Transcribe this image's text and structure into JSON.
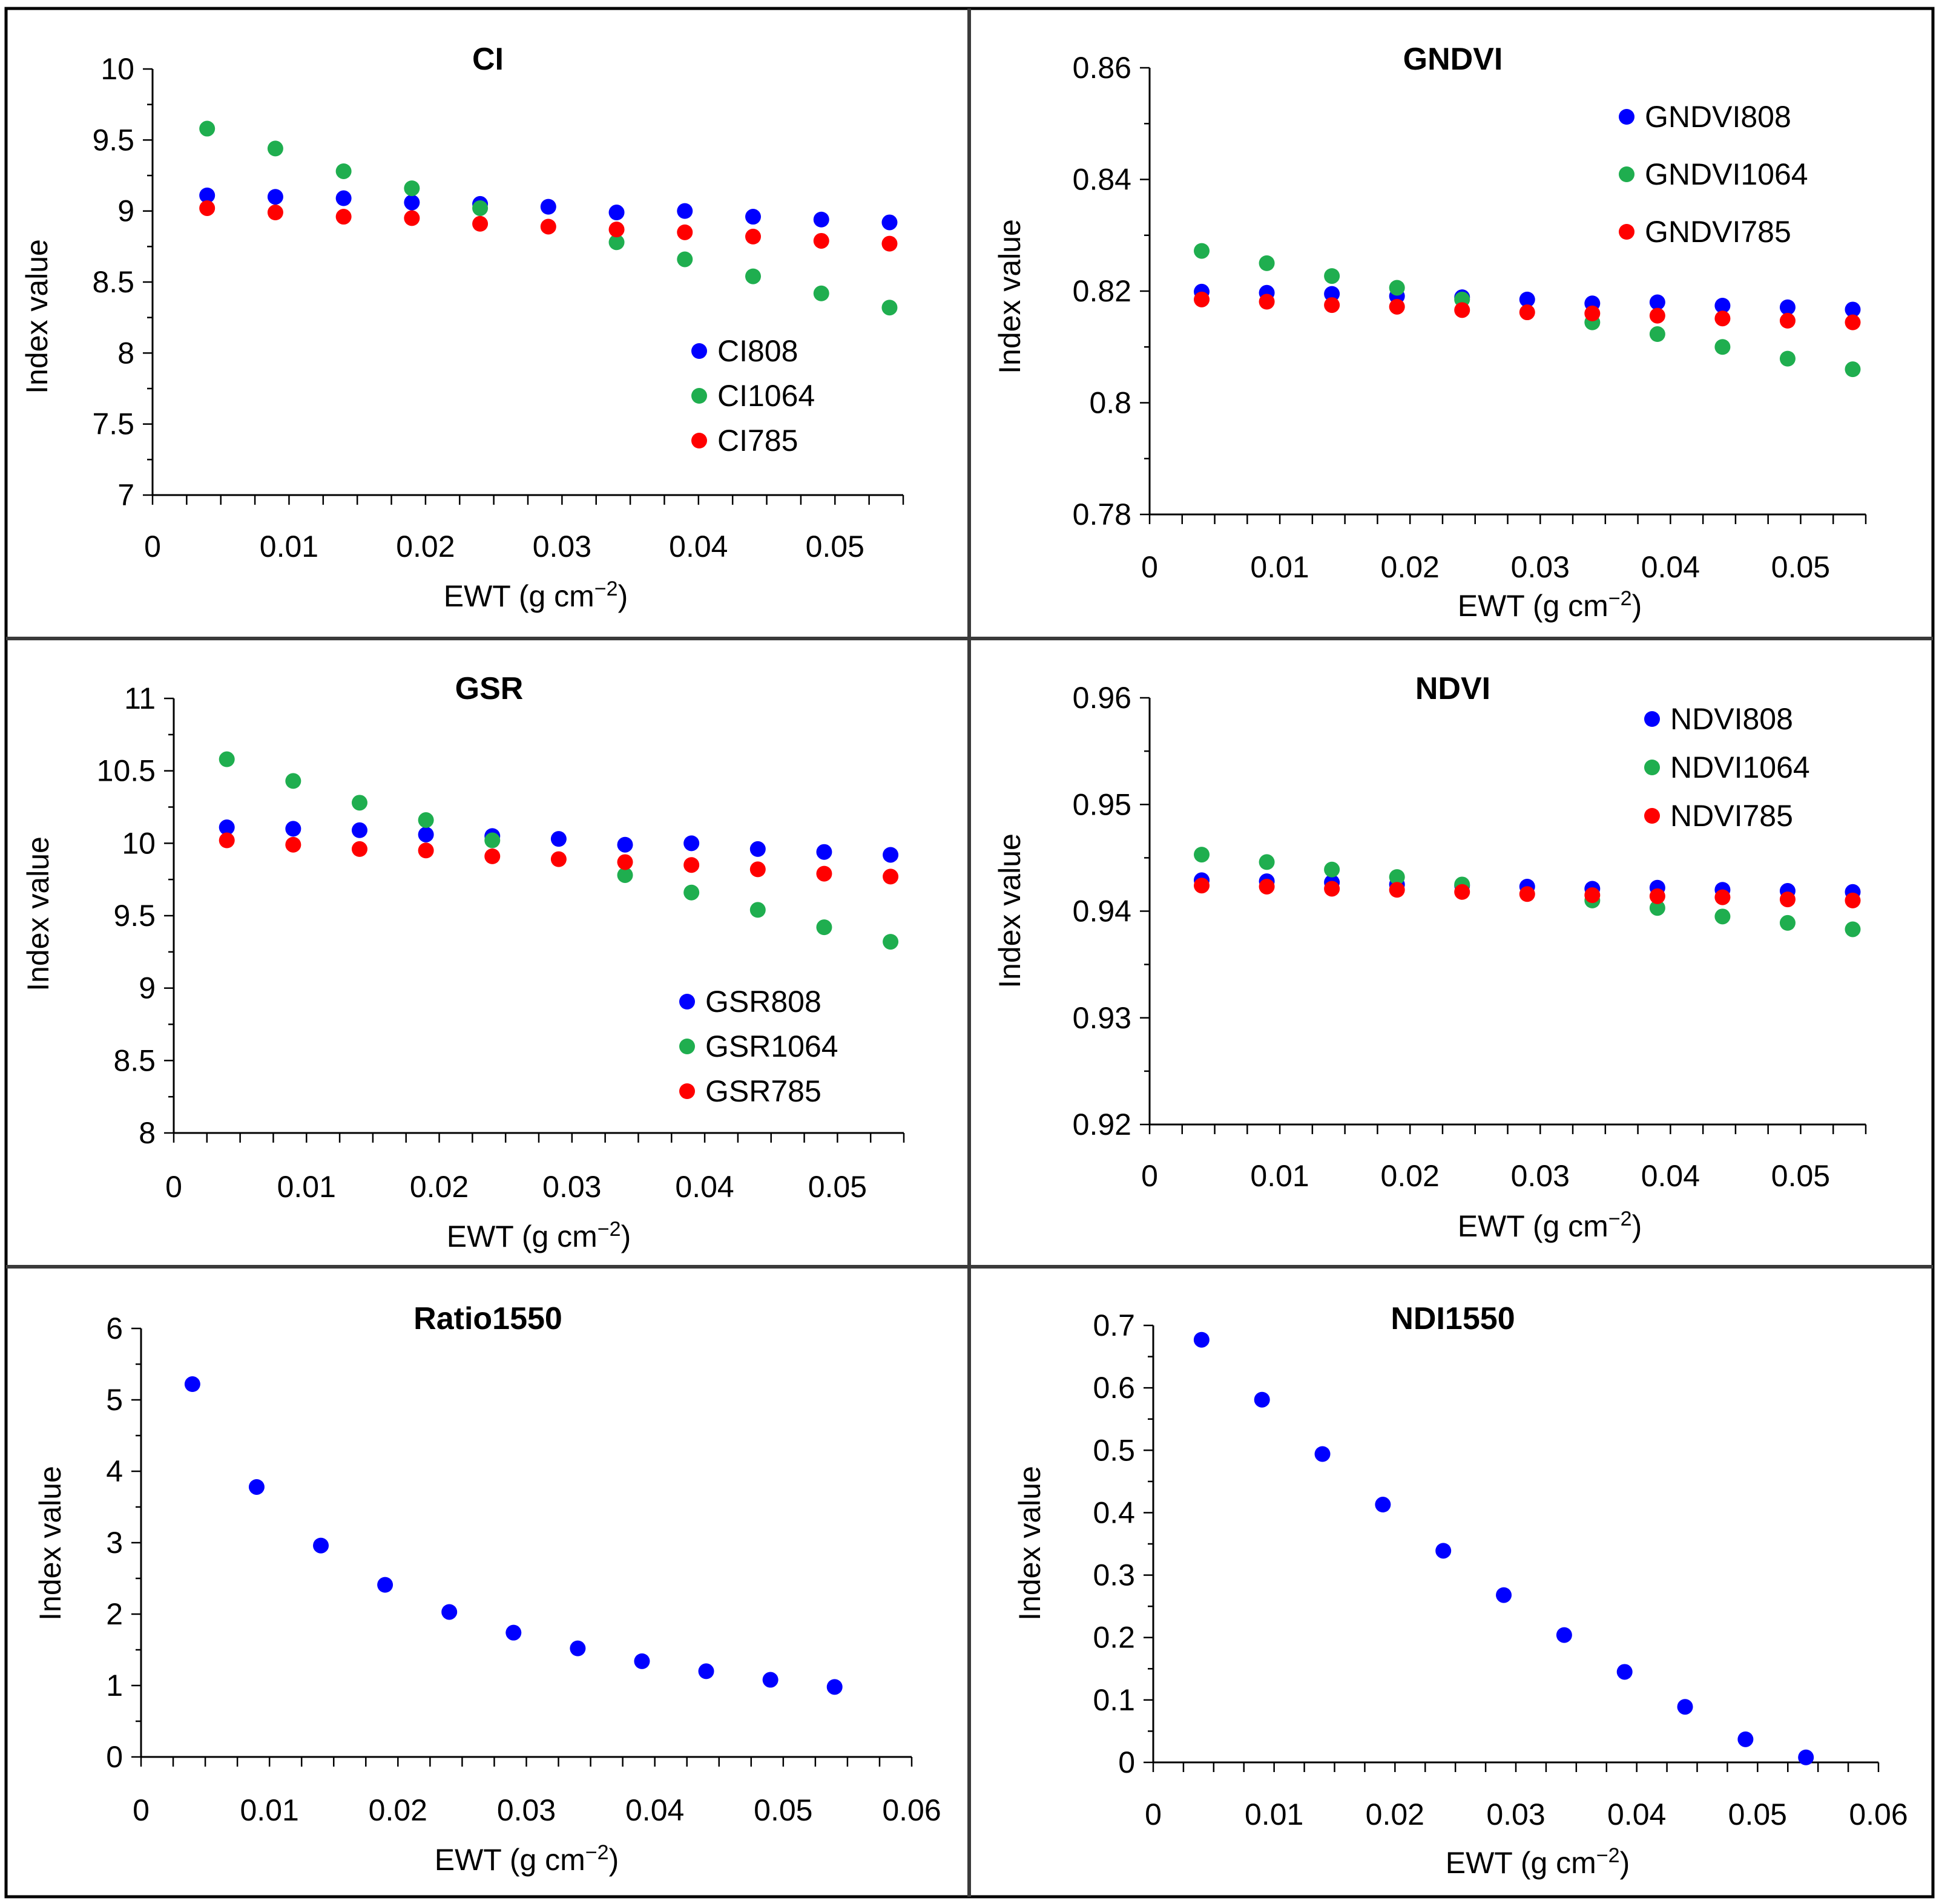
{
  "colors": {
    "s808": "#0000ff",
    "s1064": "#1fae4f",
    "s785": "#ff0000"
  },
  "chart_data": [
    {
      "type": "scatter",
      "title": "CI",
      "xlabel": "EWT (g cm",
      "xlabel_sup": "−2",
      "xlabel_end": ")",
      "ylabel": "Index value",
      "xlim": [
        0,
        0.055
      ],
      "ylim": [
        7,
        10
      ],
      "x_ticks": [
        "0",
        "0.01",
        "0.02",
        "0.03",
        "0.04",
        "0.05"
      ],
      "y_ticks": [
        "7",
        "7.5",
        "8",
        "8.5",
        "9",
        "9.5",
        "10"
      ],
      "legend_position": "bottom-right",
      "x": [
        0.004,
        0.009,
        0.014,
        0.019,
        0.024,
        0.029,
        0.034,
        0.039,
        0.044,
        0.049,
        0.054
      ],
      "series": [
        {
          "name": "CI808",
          "color": "#0000ff",
          "values": [
            9.11,
            9.1,
            9.09,
            9.06,
            9.05,
            9.03,
            8.99,
            9.0,
            8.96,
            8.94,
            8.92
          ]
        },
        {
          "name": "CI1064",
          "color": "#1fae4f",
          "values": [
            9.58,
            9.44,
            9.28,
            9.16,
            9.02,
            null,
            8.78,
            8.66,
            8.54,
            8.42,
            8.32
          ]
        },
        {
          "name": "CI785",
          "color": "#ff0000",
          "values": [
            9.02,
            8.99,
            8.96,
            8.95,
            8.91,
            8.89,
            8.87,
            8.85,
            8.82,
            8.79,
            8.77
          ]
        }
      ]
    },
    {
      "type": "scatter",
      "title": "GNDVI",
      "xlabel": "EWT (g cm",
      "xlabel_sup": "−2",
      "xlabel_end": ")",
      "ylabel": "Index value",
      "xlim": [
        0,
        0.055
      ],
      "ylim": [
        0.78,
        0.86
      ],
      "x_ticks": [
        "0",
        "0.01",
        "0.02",
        "0.03",
        "0.04",
        "0.05"
      ],
      "y_ticks": [
        "0.78",
        "0.8",
        "0.82",
        "0.84",
        "0.86"
      ],
      "legend_position": "top-right",
      "x": [
        0.004,
        0.009,
        0.014,
        0.019,
        0.024,
        0.029,
        0.034,
        0.039,
        0.044,
        0.049,
        0.054
      ],
      "series": [
        {
          "name": "GNDVI808",
          "color": "#0000ff",
          "values": [
            0.8199,
            0.8197,
            0.8195,
            0.8191,
            0.8189,
            0.8185,
            0.8178,
            0.818,
            0.8174,
            0.8171,
            0.8167
          ]
        },
        {
          "name": "GNDVI1064",
          "color": "#1fae4f",
          "values": [
            0.8272,
            0.825,
            0.8227,
            0.8206,
            0.8185,
            null,
            0.8144,
            0.8123,
            0.81,
            0.8079,
            0.806
          ]
        },
        {
          "name": "GNDVI785",
          "color": "#ff0000",
          "values": [
            0.8185,
            0.8181,
            0.8175,
            0.8172,
            0.8166,
            0.8162,
            0.816,
            0.8156,
            0.8151,
            0.8147,
            0.8144
          ]
        }
      ]
    },
    {
      "type": "scatter",
      "title": "GSR",
      "xlabel": "EWT (g cm",
      "xlabel_sup": "−2",
      "xlabel_end": ")",
      "ylabel": "Index value",
      "xlim": [
        0,
        0.055
      ],
      "ylim": [
        8,
        11
      ],
      "x_ticks": [
        "0",
        "0.01",
        "0.02",
        "0.03",
        "0.04",
        "0.05"
      ],
      "y_ticks": [
        "8",
        "8.5",
        "9",
        "9.5",
        "10",
        "10.5",
        "11"
      ],
      "legend_position": "bottom-right",
      "x": [
        0.004,
        0.009,
        0.014,
        0.019,
        0.024,
        0.029,
        0.034,
        0.039,
        0.044,
        0.049,
        0.054
      ],
      "series": [
        {
          "name": "GSR808",
          "color": "#0000ff",
          "values": [
            10.11,
            10.1,
            10.09,
            10.06,
            10.05,
            10.03,
            9.99,
            10.0,
            9.96,
            9.94,
            9.92
          ]
        },
        {
          "name": "GSR1064",
          "color": "#1fae4f",
          "values": [
            10.58,
            10.43,
            10.28,
            10.16,
            10.02,
            null,
            9.78,
            9.66,
            9.54,
            9.42,
            9.32
          ]
        },
        {
          "name": "GSR785",
          "color": "#ff0000",
          "values": [
            10.02,
            9.99,
            9.96,
            9.95,
            9.91,
            9.89,
            9.87,
            9.85,
            9.82,
            9.79,
            9.77
          ]
        }
      ]
    },
    {
      "type": "scatter",
      "title": "NDVI",
      "xlabel": "EWT (g cm",
      "xlabel_sup": "−2",
      "xlabel_end": ")",
      "ylabel": "Index value",
      "xlim": [
        0,
        0.055
      ],
      "ylim": [
        0.92,
        0.96
      ],
      "x_ticks": [
        "0",
        "0.01",
        "0.02",
        "0.03",
        "0.04",
        "0.05"
      ],
      "y_ticks": [
        "0.92",
        "0.93",
        "0.94",
        "0.95",
        "0.96"
      ],
      "legend_position": "top-right",
      "x": [
        0.004,
        0.009,
        0.014,
        0.019,
        0.024,
        0.029,
        0.034,
        0.039,
        0.044,
        0.049,
        0.054
      ],
      "series": [
        {
          "name": "NDVI808",
          "color": "#0000ff",
          "values": [
            0.9429,
            0.9428,
            0.9427,
            0.9425,
            0.9424,
            0.9423,
            0.9421,
            0.9422,
            0.942,
            0.9419,
            0.9418
          ]
        },
        {
          "name": "NDVI1064",
          "color": "#1fae4f",
          "values": [
            0.9453,
            0.9446,
            0.9439,
            0.9432,
            0.9425,
            null,
            0.941,
            0.9403,
            0.9395,
            0.9389,
            0.9383
          ]
        },
        {
          "name": "NDVI785",
          "color": "#ff0000",
          "values": [
            0.9424,
            0.9423,
            0.9421,
            0.942,
            0.9418,
            0.9416,
            0.9415,
            0.9414,
            0.9413,
            0.9411,
            0.941
          ]
        }
      ]
    },
    {
      "type": "scatter",
      "title": "Ratio1550",
      "xlabel": "EWT (g cm",
      "xlabel_sup": "−2",
      "xlabel_end": ")",
      "ylabel": "Index value",
      "xlim": [
        0,
        0.06
      ],
      "ylim": [
        0,
        6
      ],
      "x_ticks": [
        "0",
        "0.01",
        "0.02",
        "0.03",
        "0.04",
        "0.05",
        "0.06"
      ],
      "y_ticks": [
        "0",
        "1",
        "2",
        "3",
        "4",
        "5",
        "6"
      ],
      "legend_position": "none",
      "x": [
        0.004,
        0.009,
        0.014,
        0.019,
        0.024,
        0.029,
        0.034,
        0.039,
        0.044,
        0.049,
        0.054
      ],
      "series": [
        {
          "name": "Ratio1550",
          "color": "#0000ff",
          "values": [
            5.22,
            3.78,
            2.96,
            2.41,
            2.03,
            1.74,
            1.52,
            1.34,
            1.2,
            1.08,
            0.98
          ]
        }
      ]
    },
    {
      "type": "scatter",
      "title": "NDI1550",
      "xlabel": "EWT (g cm",
      "xlabel_sup": "−2",
      "xlabel_end": ")",
      "ylabel": "Index value",
      "xlim": [
        0,
        0.06
      ],
      "ylim": [
        0,
        0.7
      ],
      "x_ticks": [
        "0",
        "0.01",
        "0.02",
        "0.03",
        "0.04",
        "0.05",
        "0.06"
      ],
      "y_ticks": [
        "0",
        "0.1",
        "0.2",
        "0.3",
        "0.4",
        "0.5",
        "0.6",
        "0.7"
      ],
      "legend_position": "none",
      "x": [
        0.004,
        0.009,
        0.014,
        0.019,
        0.024,
        0.029,
        0.034,
        0.039,
        0.044,
        0.049,
        0.054
      ],
      "series": [
        {
          "name": "NDI1550",
          "color": "#0000ff",
          "values": [
            0.677,
            0.581,
            0.494,
            0.413,
            0.339,
            0.268,
            0.204,
            0.145,
            0.089,
            0.037,
            0.008
          ]
        }
      ]
    }
  ]
}
